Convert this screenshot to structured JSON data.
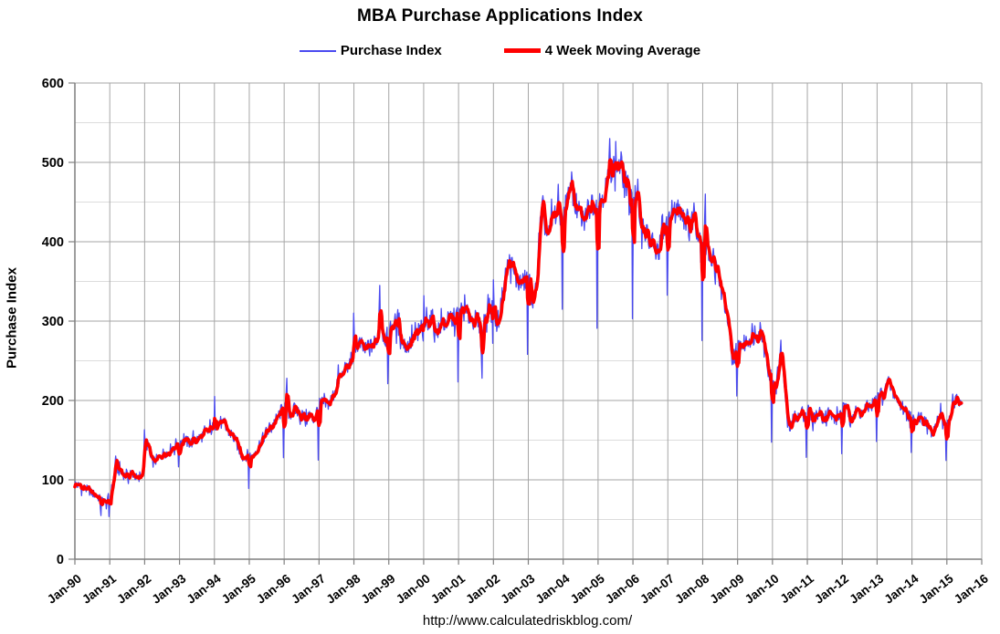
{
  "title": "MBA Purchase Applications Index",
  "legend": [
    {
      "label": "Purchase Index",
      "color": "#4a4af0",
      "sample_thickness": 2
    },
    {
      "label": "4 Week Moving Average",
      "color": "#ff0000",
      "sample_thickness": 5
    }
  ],
  "footer": "http://www.calculatedriskblog.com/",
  "chart_data": {
    "type": "line",
    "title": "MBA Purchase Applications Index",
    "xlabel": "",
    "ylabel": "Purchase Index",
    "ylim": [
      0,
      600
    ],
    "yticks": [
      0,
      100,
      200,
      300,
      400,
      500,
      600
    ],
    "y_minor_ticks": [
      50,
      150,
      250,
      350,
      450,
      550
    ],
    "x_tick_labels": [
      "Jan-90",
      "Jan-91",
      "Jan-92",
      "Jan-93",
      "Jan-94",
      "Jan-95",
      "Jan-96",
      "Jan-97",
      "Jan-98",
      "Jan-99",
      "Jan-00",
      "Jan-01",
      "Jan-02",
      "Jan-03",
      "Jan-04",
      "Jan-05",
      "Jan-06",
      "Jan-07",
      "Jan-08",
      "Jan-09",
      "Jan-10",
      "Jan-11",
      "Jan-12",
      "Jan-13",
      "Jan-14",
      "Jan-15",
      "Jan-16"
    ],
    "months_per_tick": 12,
    "x_axis_total_months": 312,
    "grid": {
      "major_color": "#a6a6a6",
      "minor_color": "#dcdcdc",
      "axis_color": "#7f7f7f"
    },
    "series": [
      {
        "name": "Purchase Index",
        "color": "#4a4af0",
        "width": 1.3,
        "kind": "weekly_index"
      },
      {
        "name": "4 Week Moving Average",
        "color": "#ff0000",
        "width": 3.6,
        "kind": "4wk_moving_average"
      }
    ],
    "monthly_moving_average_start": "Jan-90",
    "monthly_moving_average": [
      95,
      93,
      92,
      90,
      88,
      86,
      83,
      81,
      78,
      75,
      73,
      72,
      76,
      96,
      116,
      112,
      108,
      106,
      105,
      107,
      108,
      103,
      99,
      107,
      140,
      145,
      127,
      122,
      125,
      128,
      132,
      135,
      134,
      139,
      143,
      146,
      148,
      150,
      149,
      147,
      147,
      149,
      151,
      153,
      156,
      158,
      161,
      164,
      168,
      172,
      173,
      169,
      164,
      160,
      157,
      150,
      143,
      133,
      129,
      131,
      132,
      128,
      136,
      142,
      148,
      154,
      161,
      166,
      170,
      174,
      180,
      187,
      190,
      186,
      183,
      186,
      188,
      185,
      181,
      178,
      182,
      179,
      176,
      184,
      193,
      197,
      194,
      196,
      200,
      207,
      222,
      228,
      232,
      235,
      240,
      252,
      274,
      269,
      271,
      267,
      262,
      264,
      268,
      272,
      279,
      308,
      285,
      277,
      285,
      294,
      299,
      294,
      285,
      272,
      268,
      271,
      275,
      279,
      283,
      287,
      291,
      299,
      303,
      303,
      288,
      290,
      294,
      296,
      299,
      301,
      302,
      306,
      310,
      313,
      312,
      308,
      305,
      302,
      301,
      298,
      285,
      305,
      315,
      316,
      316,
      296,
      305,
      330,
      355,
      372,
      376,
      360,
      351,
      349,
      347,
      352,
      356,
      335,
      322,
      360,
      420,
      440,
      415,
      405,
      426,
      434,
      440,
      436,
      438,
      448,
      455,
      465,
      450,
      438,
      432,
      423,
      437,
      444,
      452,
      446,
      445,
      455,
      463,
      471,
      490,
      497,
      494,
      496,
      490,
      482,
      465,
      452,
      462,
      454,
      441,
      425,
      414,
      406,
      396,
      388,
      384,
      391,
      406,
      416,
      425,
      441,
      434,
      438,
      445,
      440,
      432,
      424,
      420,
      440,
      417,
      406,
      404,
      390,
      392,
      379,
      371,
      360,
      345,
      327,
      316,
      285,
      248,
      258,
      268,
      271,
      270,
      274,
      278,
      280,
      282,
      284,
      286,
      282,
      252,
      226,
      218,
      223,
      236,
      258,
      225,
      172,
      163,
      175,
      182,
      178,
      186,
      181,
      190,
      184,
      177,
      181,
      185,
      180,
      179,
      185,
      182,
      178,
      176,
      181,
      192,
      187,
      185,
      184,
      184,
      186,
      185,
      183,
      190,
      192,
      194,
      197,
      203,
      207,
      211,
      215,
      219,
      214,
      207,
      199,
      194,
      190,
      187,
      182,
      178,
      172,
      183,
      178,
      175,
      169,
      165,
      156,
      162,
      182,
      187,
      169,
      167,
      178,
      194,
      200,
      198,
      196
    ],
    "notable_weeks": [
      {
        "month_index": 9,
        "value": 55
      },
      {
        "month_index": 14,
        "value": 130
      },
      {
        "month_index": 24,
        "value": 163
      },
      {
        "month_index": 48,
        "value": 205
      },
      {
        "month_index": 73,
        "value": 228
      },
      {
        "month_index": 93,
        "value": 248
      },
      {
        "month_index": 96,
        "value": 310
      },
      {
        "month_index": 105,
        "value": 345
      },
      {
        "month_index": 120,
        "value": 332
      },
      {
        "month_index": 140,
        "value": 228
      },
      {
        "month_index": 144,
        "value": 352
      },
      {
        "month_index": 161,
        "value": 458
      },
      {
        "month_index": 171,
        "value": 488
      },
      {
        "month_index": 184,
        "value": 530
      },
      {
        "month_index": 217,
        "value": 460
      },
      {
        "month_index": 243,
        "value": 276
      },
      {
        "month_index": 280,
        "value": 230
      },
      {
        "month_index": 302,
        "value": 208
      }
    ],
    "weekly_noise": {
      "base_amplitude": 3,
      "fraction_of_value": 0.032
    },
    "holiday_dip_factor": 0.72
  }
}
